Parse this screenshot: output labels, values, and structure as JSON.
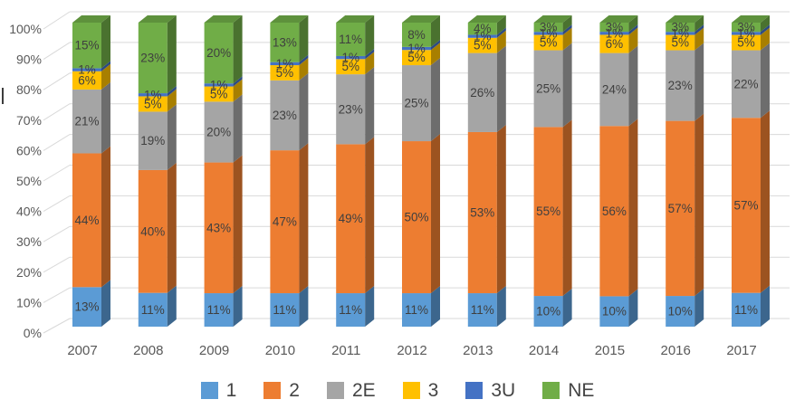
{
  "chart_data": {
    "type": "bar",
    "variant": "3d-100%-stacked-column",
    "title": "",
    "categories": [
      "2007",
      "2008",
      "2009",
      "2010",
      "2011",
      "2012",
      "2013",
      "2014",
      "2015",
      "2016",
      "2017"
    ],
    "series": [
      {
        "name": "1",
        "color": "#5B9BD5",
        "values": [
          13,
          11,
          11,
          11,
          11,
          11,
          11,
          10,
          10,
          10,
          11
        ]
      },
      {
        "name": "2",
        "color": "#ED7D31",
        "values": [
          44,
          40,
          43,
          47,
          49,
          50,
          53,
          55,
          56,
          57,
          57
        ]
      },
      {
        "name": "2E",
        "color": "#A5A5A5",
        "values": [
          21,
          19,
          20,
          23,
          23,
          25,
          26,
          25,
          24,
          23,
          22
        ]
      },
      {
        "name": "3",
        "color": "#FFC000",
        "values": [
          6,
          5,
          5,
          5,
          5,
          5,
          5,
          5,
          6,
          5,
          5
        ]
      },
      {
        "name": "3U",
        "color": "#4472C4",
        "values": [
          1,
          1,
          1,
          1,
          1,
          1,
          1,
          1,
          1,
          1,
          1
        ]
      },
      {
        "name": "NE",
        "color": "#70AD47",
        "values": [
          15,
          23,
          20,
          13,
          11,
          8,
          4,
          3,
          3,
          3,
          3
        ]
      }
    ],
    "data_label_suffix": "%",
    "y_axis": {
      "min": 0,
      "max": 100,
      "step": 10,
      "tick_labels": [
        "0%",
        "10%",
        "20%",
        "30%",
        "40%",
        "50%",
        "60%",
        "70%",
        "80%",
        "90%",
        "100%"
      ]
    },
    "legend": {
      "position": "bottom",
      "entries": [
        "1",
        "2",
        "2E",
        "3",
        "3U",
        "NE"
      ]
    },
    "grid": true,
    "theme": {
      "gridline_color": "#D9D9D9",
      "axis_text_color": "#595959",
      "data_label_color": "#3F3F3F",
      "legend_text_color": "#444444"
    }
  }
}
